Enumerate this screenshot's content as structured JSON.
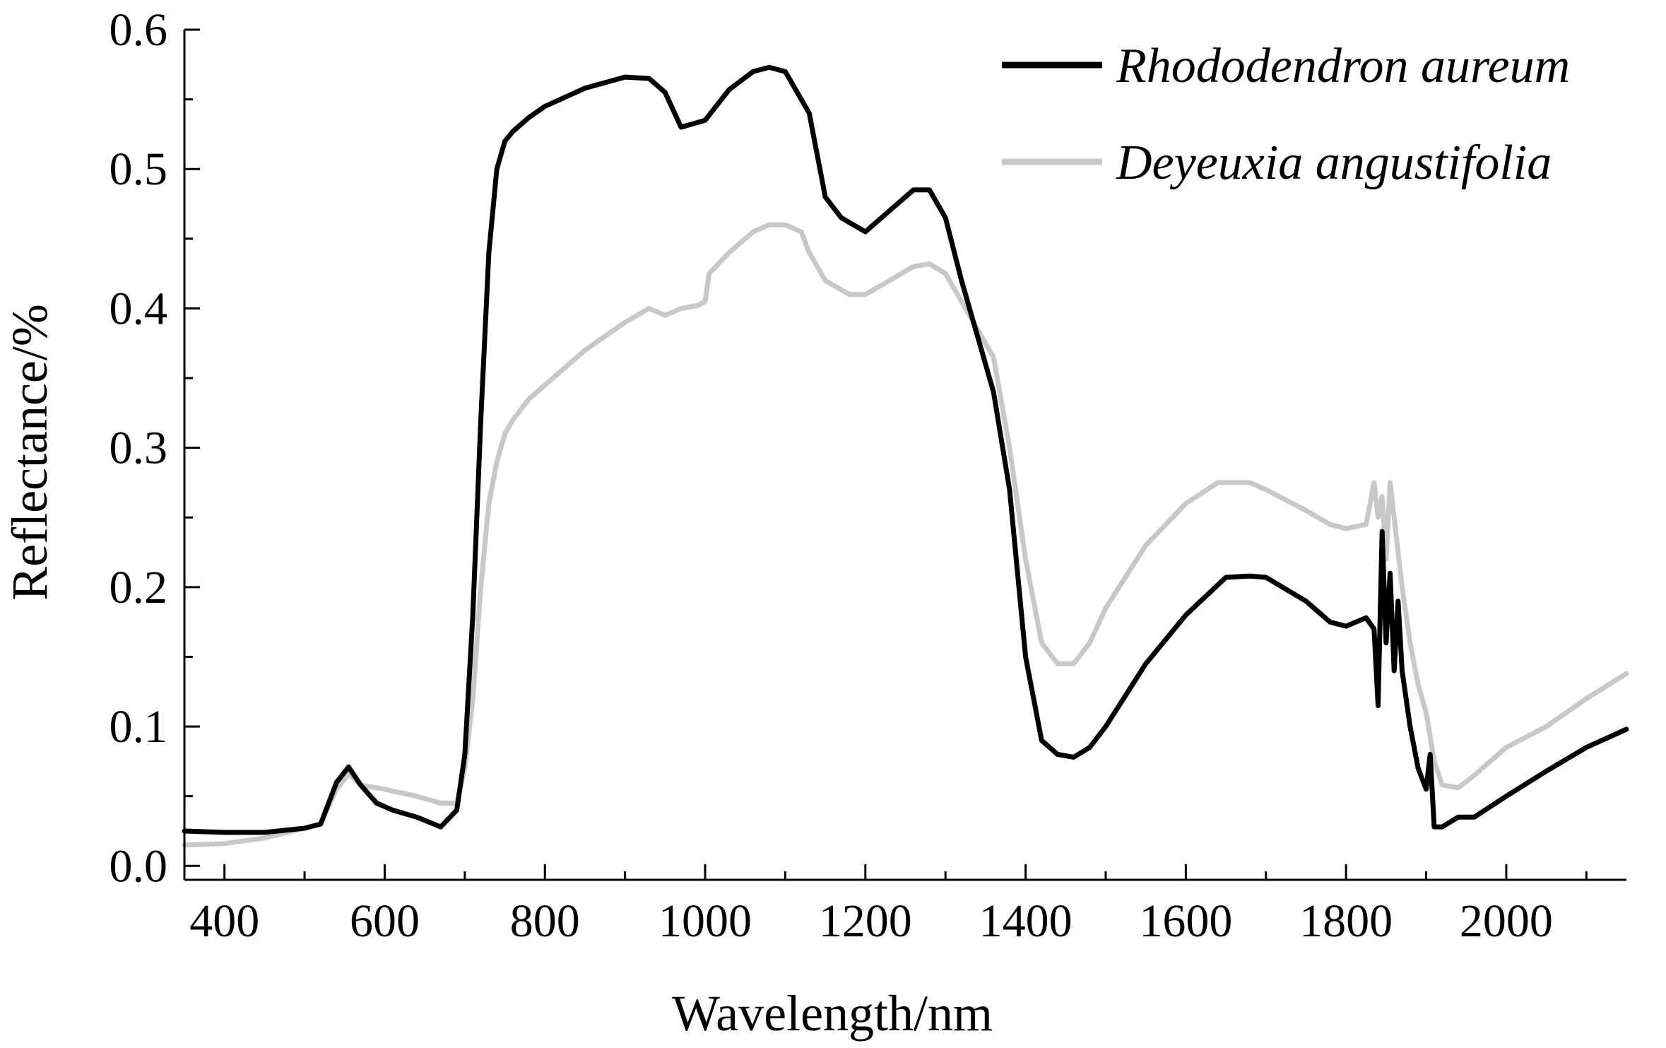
{
  "chart_data": {
    "type": "line",
    "title": "",
    "xlabel": "Wavelength/nm",
    "ylabel": "Reflectance/%",
    "xlim": [
      350,
      2150
    ],
    "ylim": [
      -0.01,
      0.6
    ],
    "xticks": [
      400,
      600,
      800,
      1000,
      1200,
      1400,
      1600,
      1800,
      2000
    ],
    "xtick_labels": [
      "400",
      "600",
      "800",
      "1000",
      "1200",
      "1400",
      "1600",
      "1800",
      "2000"
    ],
    "xminor_step": 100,
    "yticks": [
      0.0,
      0.1,
      0.2,
      0.3,
      0.4,
      0.5,
      0.6
    ],
    "ytick_labels": [
      "0.0",
      "0.1",
      "0.2",
      "0.3",
      "0.4",
      "0.5",
      "0.6"
    ],
    "yminor_step": 0.05,
    "grid": false,
    "legend_position": "top-right",
    "series": [
      {
        "name": "Rhododendron aureum",
        "color": "#000000",
        "x": [
          350,
          400,
          450,
          500,
          520,
          540,
          555,
          570,
          590,
          610,
          640,
          670,
          690,
          700,
          710,
          720,
          730,
          740,
          750,
          760,
          780,
          800,
          850,
          900,
          930,
          950,
          970,
          1000,
          1030,
          1060,
          1080,
          1100,
          1130,
          1150,
          1170,
          1200,
          1230,
          1260,
          1280,
          1300,
          1320,
          1340,
          1360,
          1380,
          1400,
          1420,
          1440,
          1460,
          1480,
          1500,
          1550,
          1600,
          1650,
          1680,
          1700,
          1750,
          1780,
          1800,
          1825,
          1835,
          1840,
          1845,
          1850,
          1855,
          1860,
          1865,
          1870,
          1880,
          1890,
          1900,
          1905,
          1910,
          1920,
          1940,
          1960,
          2000,
          2050,
          2100,
          2150
        ],
        "y": [
          0.025,
          0.024,
          0.024,
          0.027,
          0.03,
          0.06,
          0.071,
          0.058,
          0.045,
          0.04,
          0.035,
          0.028,
          0.04,
          0.08,
          0.18,
          0.32,
          0.44,
          0.5,
          0.52,
          0.527,
          0.537,
          0.545,
          0.558,
          0.566,
          0.565,
          0.555,
          0.53,
          0.535,
          0.557,
          0.57,
          0.573,
          0.57,
          0.54,
          0.48,
          0.465,
          0.455,
          0.47,
          0.485,
          0.485,
          0.465,
          0.42,
          0.38,
          0.34,
          0.27,
          0.15,
          0.09,
          0.08,
          0.078,
          0.085,
          0.1,
          0.145,
          0.18,
          0.207,
          0.208,
          0.207,
          0.19,
          0.175,
          0.172,
          0.178,
          0.17,
          0.115,
          0.24,
          0.16,
          0.21,
          0.14,
          0.19,
          0.14,
          0.1,
          0.07,
          0.055,
          0.08,
          0.028,
          0.028,
          0.035,
          0.035,
          0.05,
          0.068,
          0.085,
          0.098
        ]
      },
      {
        "name": "Deyeuxia angustifolia",
        "color": "#c8c8c8",
        "x": [
          350,
          400,
          450,
          500,
          520,
          540,
          555,
          570,
          600,
          640,
          670,
          690,
          700,
          710,
          720,
          730,
          740,
          750,
          760,
          780,
          800,
          850,
          900,
          930,
          950,
          970,
          990,
          1000,
          1005,
          1030,
          1060,
          1080,
          1100,
          1120,
          1130,
          1150,
          1180,
          1200,
          1230,
          1260,
          1280,
          1300,
          1320,
          1340,
          1360,
          1380,
          1400,
          1420,
          1440,
          1460,
          1480,
          1500,
          1550,
          1600,
          1640,
          1680,
          1700,
          1750,
          1780,
          1800,
          1825,
          1835,
          1840,
          1845,
          1850,
          1855,
          1860,
          1870,
          1880,
          1890,
          1900,
          1910,
          1920,
          1940,
          1960,
          2000,
          2050,
          2100,
          2150
        ],
        "y": [
          0.015,
          0.016,
          0.02,
          0.027,
          0.03,
          0.055,
          0.066,
          0.058,
          0.055,
          0.05,
          0.045,
          0.045,
          0.07,
          0.12,
          0.2,
          0.26,
          0.29,
          0.31,
          0.32,
          0.335,
          0.345,
          0.37,
          0.39,
          0.4,
          0.395,
          0.4,
          0.402,
          0.405,
          0.425,
          0.44,
          0.455,
          0.46,
          0.46,
          0.455,
          0.44,
          0.42,
          0.41,
          0.41,
          0.42,
          0.43,
          0.432,
          0.425,
          0.405,
          0.385,
          0.365,
          0.3,
          0.22,
          0.16,
          0.145,
          0.145,
          0.16,
          0.185,
          0.23,
          0.26,
          0.275,
          0.275,
          0.27,
          0.255,
          0.245,
          0.242,
          0.245,
          0.275,
          0.25,
          0.265,
          0.22,
          0.275,
          0.25,
          0.2,
          0.16,
          0.13,
          0.11,
          0.075,
          0.058,
          0.056,
          0.065,
          0.085,
          0.1,
          0.12,
          0.138
        ]
      }
    ]
  }
}
